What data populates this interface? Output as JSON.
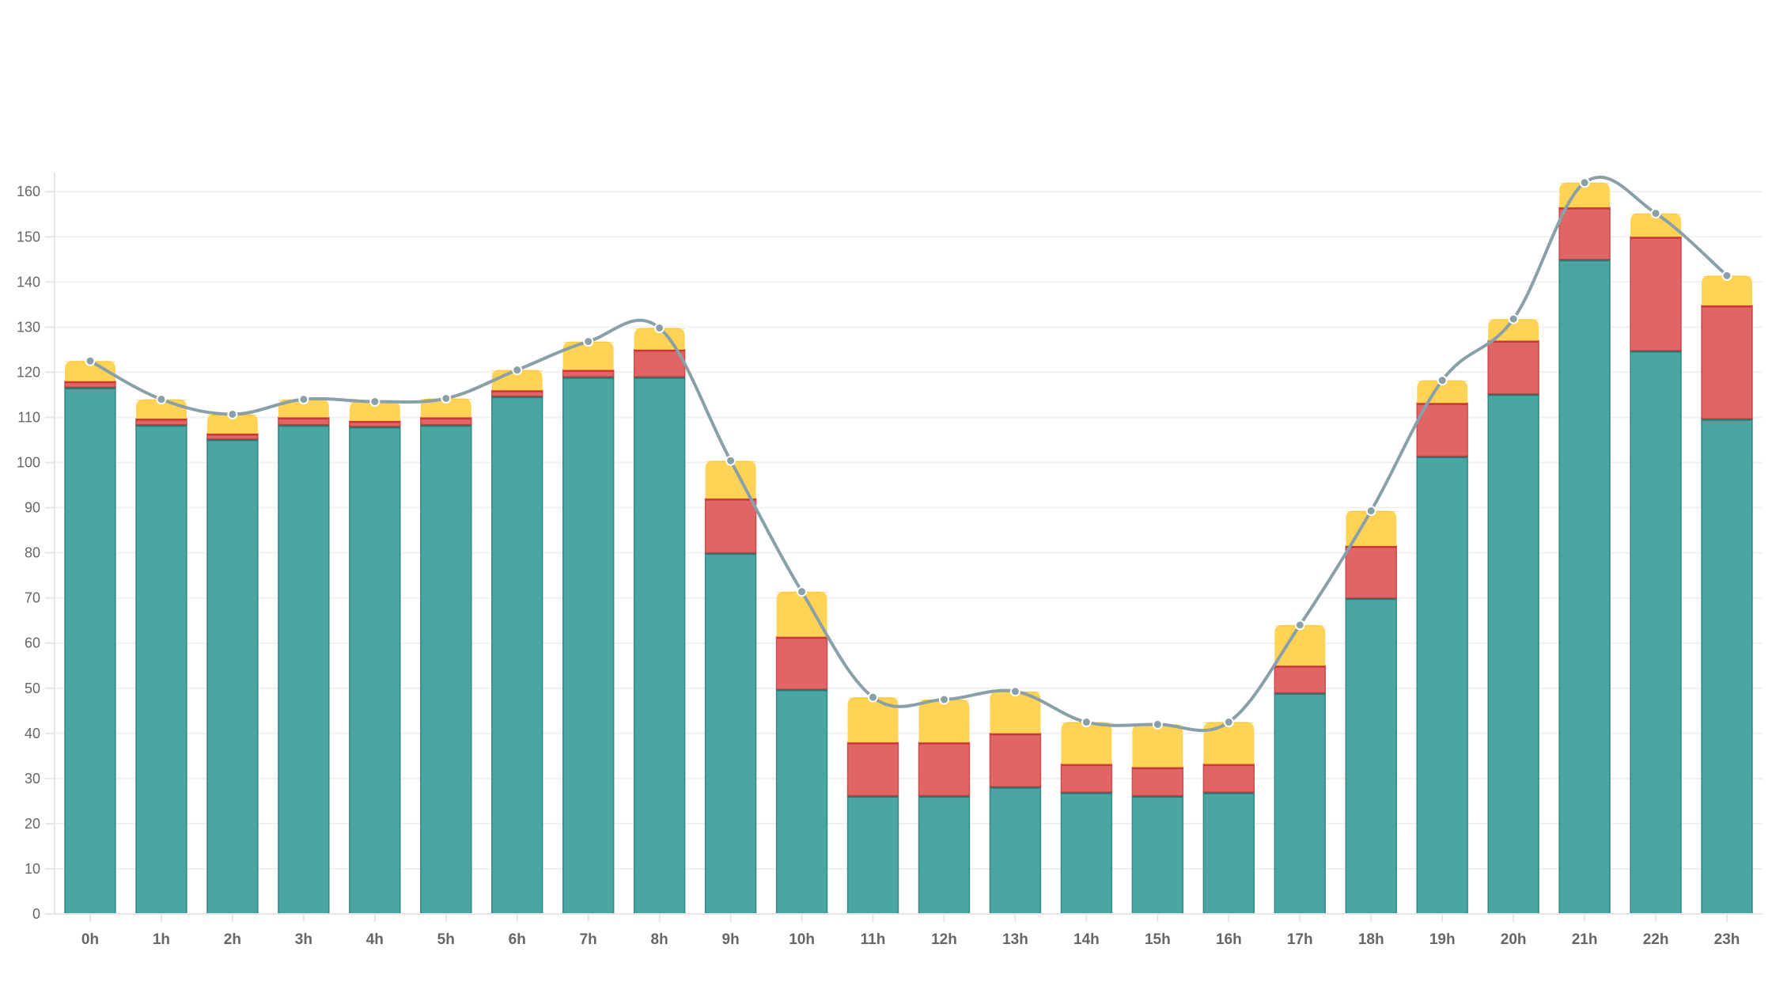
{
  "chart_data": {
    "type": "bar",
    "stacked": true,
    "title": "",
    "xlabel": "",
    "ylabel": "",
    "ylim": [
      0,
      165
    ],
    "yticks": [
      0,
      10,
      20,
      30,
      40,
      50,
      60,
      70,
      80,
      90,
      100,
      110,
      120,
      130,
      140,
      150,
      160
    ],
    "grid": true,
    "legend": "none",
    "categories": [
      "0h",
      "1h",
      "2h",
      "3h",
      "4h",
      "5h",
      "6h",
      "7h",
      "8h",
      "9h",
      "10h",
      "11h",
      "12h",
      "13h",
      "14h",
      "15h",
      "16h",
      "17h",
      "18h",
      "19h",
      "20h",
      "21h",
      "22h",
      "23h"
    ],
    "series": [
      {
        "color": "#4ba5a3",
        "stroke": "#1f7a74",
        "values": [
          116.7,
          108.4,
          105.2,
          108.4,
          108.0,
          108.4,
          114.7,
          119.0,
          119.0,
          80.0,
          49.8,
          26.2,
          26.2,
          28.2,
          27.0,
          26.2,
          27.0,
          49.0,
          70.0,
          101.4,
          115.2,
          145.0,
          124.8,
          109.7
        ]
      },
      {
        "color": "#e06666",
        "stroke": "#c8373a",
        "values": [
          1.3,
          1.3,
          1.2,
          1.6,
          1.2,
          1.6,
          1.3,
          1.5,
          6.0,
          12.0,
          11.6,
          11.8,
          11.8,
          11.8,
          6.2,
          6.3,
          6.2,
          6.0,
          11.5,
          11.8,
          11.8,
          11.5,
          25.2,
          25.1
        ]
      },
      {
        "color": "#ffd24d",
        "stroke": "#f2b600",
        "values": [
          4.5,
          4.3,
          4.3,
          4.0,
          4.3,
          4.2,
          4.5,
          6.3,
          4.8,
          8.4,
          10.0,
          10.0,
          9.5,
          9.3,
          9.3,
          9.5,
          9.3,
          9.0,
          7.8,
          5.0,
          4.8,
          5.5,
          5.2,
          6.6
        ]
      }
    ],
    "line": {
      "type": "line",
      "smooth": true,
      "color": "#8aa0a8",
      "values": [
        122.5,
        114.0,
        110.7,
        114.0,
        113.5,
        114.2,
        120.5,
        126.8,
        129.8,
        100.4,
        71.4,
        48.0,
        47.5,
        49.3,
        42.5,
        42.0,
        42.5,
        64.0,
        89.3,
        118.2,
        131.8,
        162.0,
        155.2,
        141.4
      ]
    }
  }
}
